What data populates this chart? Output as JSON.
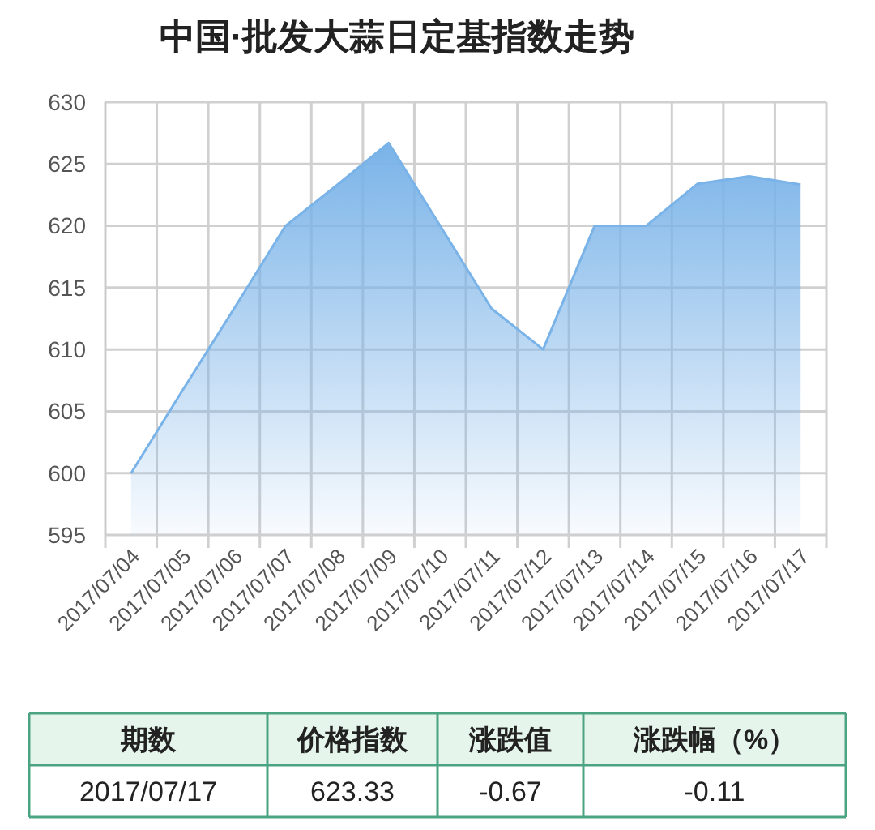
{
  "chart_data": {
    "type": "area",
    "title": "中国·批发大蒜日定基指数走势",
    "categories": [
      "2017/07/04",
      "2017/07/05",
      "2017/07/06",
      "2017/07/07",
      "2017/07/08",
      "2017/07/09",
      "2017/07/10",
      "2017/07/11",
      "2017/07/12",
      "2017/07/13",
      "2017/07/14",
      "2017/07/15",
      "2017/07/16",
      "2017/07/17"
    ],
    "series": [
      {
        "color": "#7ab3e8",
        "values": [
          600,
          606.7,
          613.3,
          620,
          623.3,
          626.7,
          620,
          613.3,
          610,
          620,
          620,
          623.4,
          624,
          623.33
        ]
      }
    ],
    "ylim": [
      595,
      630
    ],
    "yticks": [
      595,
      600,
      605,
      610,
      615,
      620,
      625,
      630
    ],
    "grid": true,
    "annotations": [
      "期数",
      "价格指数",
      "涨跌值",
      "涨跌幅（%）",
      "2017/07/17",
      "623.33",
      "-0.67",
      "-0.11"
    ]
  }
}
